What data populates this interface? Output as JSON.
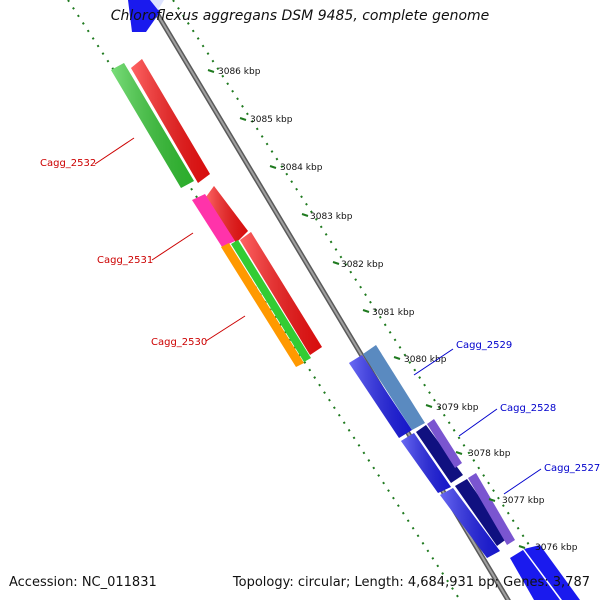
{
  "title": "Chloroflexus aggregans DSM 9485, complete genome",
  "accession": "Accession: NC_011831",
  "summary": "Topology: circular; Length: 4,684,931 bp; Genes: 3,787",
  "tick_labels": [
    "3086 kbp",
    "3085 kbp",
    "3084 kbp",
    "3083 kbp",
    "3082 kbp",
    "3081 kbp",
    "3080 kbp",
    "3079 kbp",
    "3078 kbp",
    "3077 kbp",
    "3076 kbp"
  ],
  "gene_labels": {
    "left": [
      "Cagg_2532",
      "Cagg_2531",
      "Cagg_2530"
    ],
    "right": [
      "Cagg_2529",
      "Cagg_2528",
      "Cagg_2527"
    ]
  },
  "colors": {
    "backbone": "#8a8a8a",
    "tick_dots": "#1f7a1f",
    "red_gene": "#ff1010",
    "green_gene": "#33cc33",
    "pink_gene": "#ff33aa",
    "orange_gene": "#ff9900",
    "blue_gene": "#1a1aee",
    "steel_gene": "#5a8ac0",
    "navy_gene": "#101080",
    "purple_gene": "#7a55d0",
    "left_label": "#cc0000",
    "right_label": "#0000cc"
  },
  "icons": [
    "forward-arrow-gene",
    "reverse-arrow-gene"
  ]
}
